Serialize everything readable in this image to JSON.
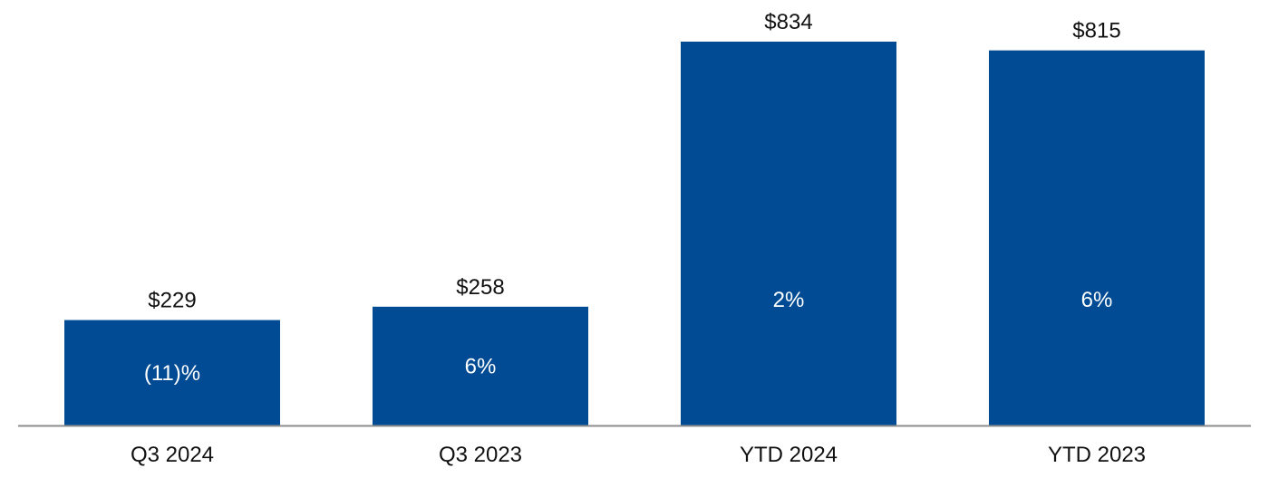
{
  "chart_data": {
    "type": "bar",
    "title": "",
    "xlabel": "",
    "ylabel": "",
    "categories": [
      "Q3 2024",
      "Q3 2023",
      "YTD 2024",
      "YTD 2023"
    ],
    "values": [
      229,
      258,
      834,
      815
    ],
    "value_labels": [
      "$229",
      "$258",
      "$834",
      "$815"
    ],
    "change_labels": [
      "(11)%",
      "6%",
      "2%",
      "6%"
    ],
    "ylim": [
      0,
      834
    ],
    "grid": false,
    "legend": "none",
    "colors": {
      "bar": "#004B93",
      "axis": "#8C8C8C",
      "value_text": "#111111",
      "inner_text": "#FFFFFF"
    }
  }
}
